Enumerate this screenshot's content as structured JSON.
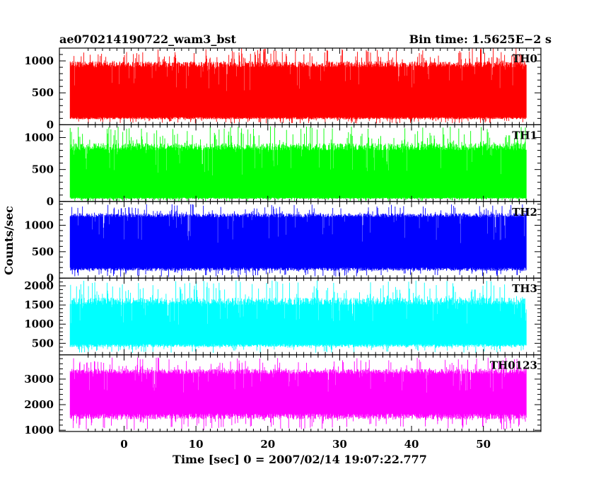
{
  "chart_data": {
    "type": "line",
    "title_left": "ae070214190722_wam3_bst",
    "title_right": "Bin time: 1.5625E−2 s",
    "xlabel": "Time [sec] 0 = 2007/02/14 19:07:22.777",
    "ylabel": "Counts/sec",
    "xlim": [
      -9,
      58
    ],
    "x_ticks": [
      0,
      10,
      20,
      30,
      40,
      50
    ],
    "x_range": [
      -7.5,
      56
    ],
    "bin_time": 0.015625,
    "panels": [
      {
        "name": "TH0",
        "color": "#ff0000",
        "ylim": [
          0,
          1200
        ],
        "y_ticks": [
          0,
          500,
          1000
        ],
        "mean": 520,
        "low_typ": 120,
        "high_typ": 900,
        "low_min": 20,
        "high_max": 1200
      },
      {
        "name": "TH1",
        "color": "#00ff00",
        "ylim": [
          0,
          1200
        ],
        "y_ticks": [
          0,
          500,
          1000
        ],
        "mean": 400,
        "low_typ": 60,
        "high_typ": 800,
        "low_min": 0,
        "high_max": 1180
      },
      {
        "name": "TH2",
        "color": "#0000ff",
        "ylim": [
          0,
          1450
        ],
        "y_ticks": [
          0,
          500,
          1000
        ],
        "mean": 650,
        "low_typ": 200,
        "high_typ": 1150,
        "low_min": 20,
        "high_max": 1400
      },
      {
        "name": "TH3",
        "color": "#00ffff",
        "ylim": [
          200,
          2200
        ],
        "y_ticks": [
          500,
          1000,
          1500,
          2000
        ],
        "mean": 980,
        "low_typ": 480,
        "high_typ": 1500,
        "low_min": 250,
        "high_max": 2150
      },
      {
        "name": "TH0123",
        "color": "#ff00ff",
        "ylim": [
          950,
          3950
        ],
        "y_ticks": [
          1000,
          2000,
          3000
        ],
        "mean": 2450,
        "low_typ": 1650,
        "high_typ": 3200,
        "low_min": 1000,
        "high_max": 3850
      }
    ]
  }
}
